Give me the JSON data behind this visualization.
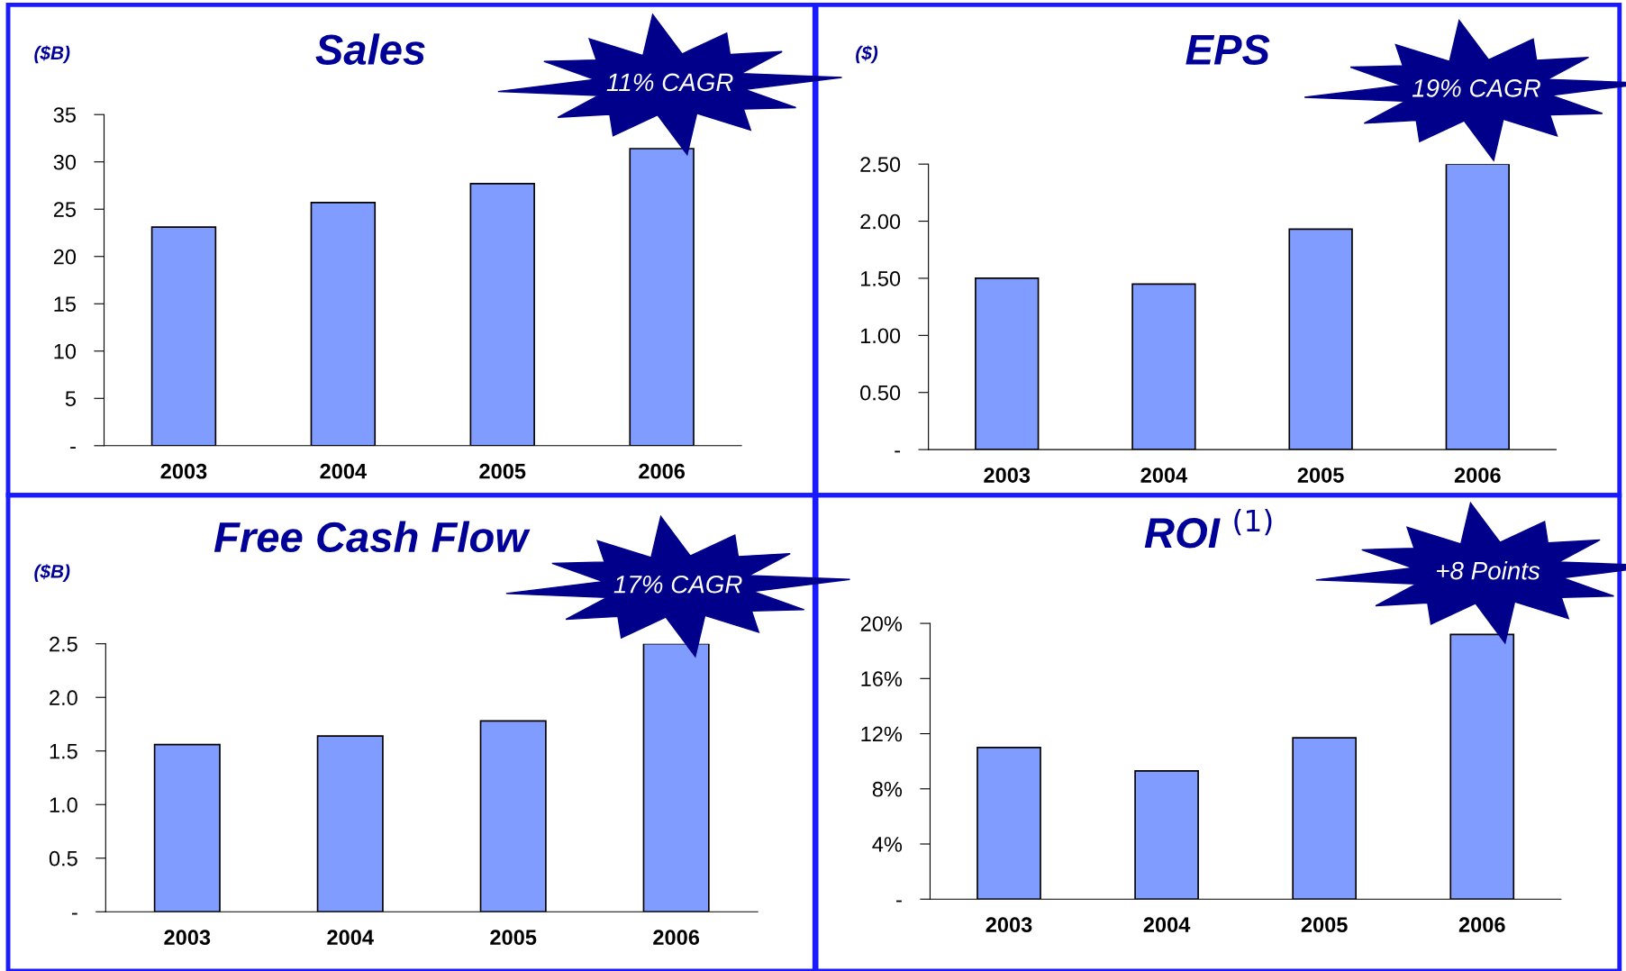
{
  "chart_data": [
    {
      "type": "bar",
      "title": "Sales",
      "ylabel": "($B)",
      "categories": [
        "2003",
        "2004",
        "2005",
        "2006"
      ],
      "values": [
        23.1,
        25.7,
        27.7,
        31.4
      ],
      "color": "#809cff",
      "ylim": [
        0,
        35
      ],
      "yticks": [
        {
          "value": 0,
          "label": "-"
        },
        5,
        10,
        15,
        20,
        25,
        30,
        35
      ],
      "grid": false,
      "legend": false,
      "annotations": [
        "11% CAGR"
      ]
    },
    {
      "type": "bar",
      "title": "EPS",
      "ylabel": "($)",
      "categories": [
        "2003",
        "2004",
        "2005",
        "2006"
      ],
      "values": [
        1.5,
        1.45,
        1.93,
        2.5
      ],
      "color": "#809cff",
      "ylim": [
        0,
        2.5
      ],
      "yticks": [
        {
          "value": 0,
          "label": "-"
        },
        {
          "value": 0.5,
          "label": "0.50"
        },
        {
          "value": 1,
          "label": "1.00"
        },
        {
          "value": 1.5,
          "label": "1.50"
        },
        {
          "value": 2,
          "label": "2.00"
        },
        {
          "value": 2.5,
          "label": "2.50"
        }
      ],
      "grid": false,
      "legend": false,
      "annotations": [
        "19% CAGR"
      ]
    },
    {
      "type": "bar",
      "title": "Free Cash Flow",
      "ylabel": "($B)",
      "categories": [
        "2003",
        "2004",
        "2005",
        "2006"
      ],
      "values": [
        1.56,
        1.64,
        1.78,
        2.5
      ],
      "color": "#809cff",
      "ylim": [
        0,
        2.5
      ],
      "yticks": [
        {
          "value": 0,
          "label": "-"
        },
        0.5,
        {
          "value": 1,
          "label": "1.0"
        },
        1.5,
        {
          "value": 2,
          "label": "2.0"
        },
        2.5
      ],
      "grid": false,
      "legend": false,
      "annotations": [
        "17% CAGR"
      ]
    },
    {
      "type": "bar",
      "title": "ROI $^{(1)}$",
      "categories": [
        "2003",
        "2004",
        "2005",
        "2006"
      ],
      "values": [
        11.0,
        9.3,
        11.7,
        19.2
      ],
      "color": "#809cff",
      "ylim": [
        0,
        20
      ],
      "yticks": [
        {
          "value": 0,
          "label": "-"
        },
        {
          "value": 4,
          "label": "4%"
        },
        {
          "value": 8,
          "label": "8%"
        },
        {
          "value": 12,
          "label": "12%"
        },
        {
          "value": 16,
          "label": "16%"
        },
        {
          "value": 20,
          "label": "20%"
        }
      ],
      "grid": false,
      "legend": false,
      "annotations": [
        "+8 Points"
      ]
    }
  ]
}
